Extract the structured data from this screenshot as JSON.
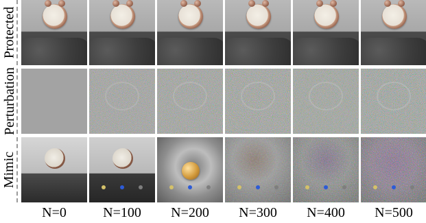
{
  "figure": {
    "row_labels": [
      "Protected",
      "Perturbation",
      "Mimic"
    ],
    "column_labels": [
      "N=0",
      "N=100",
      "N=200",
      "N=300",
      "N=400",
      "N=500"
    ]
  }
}
